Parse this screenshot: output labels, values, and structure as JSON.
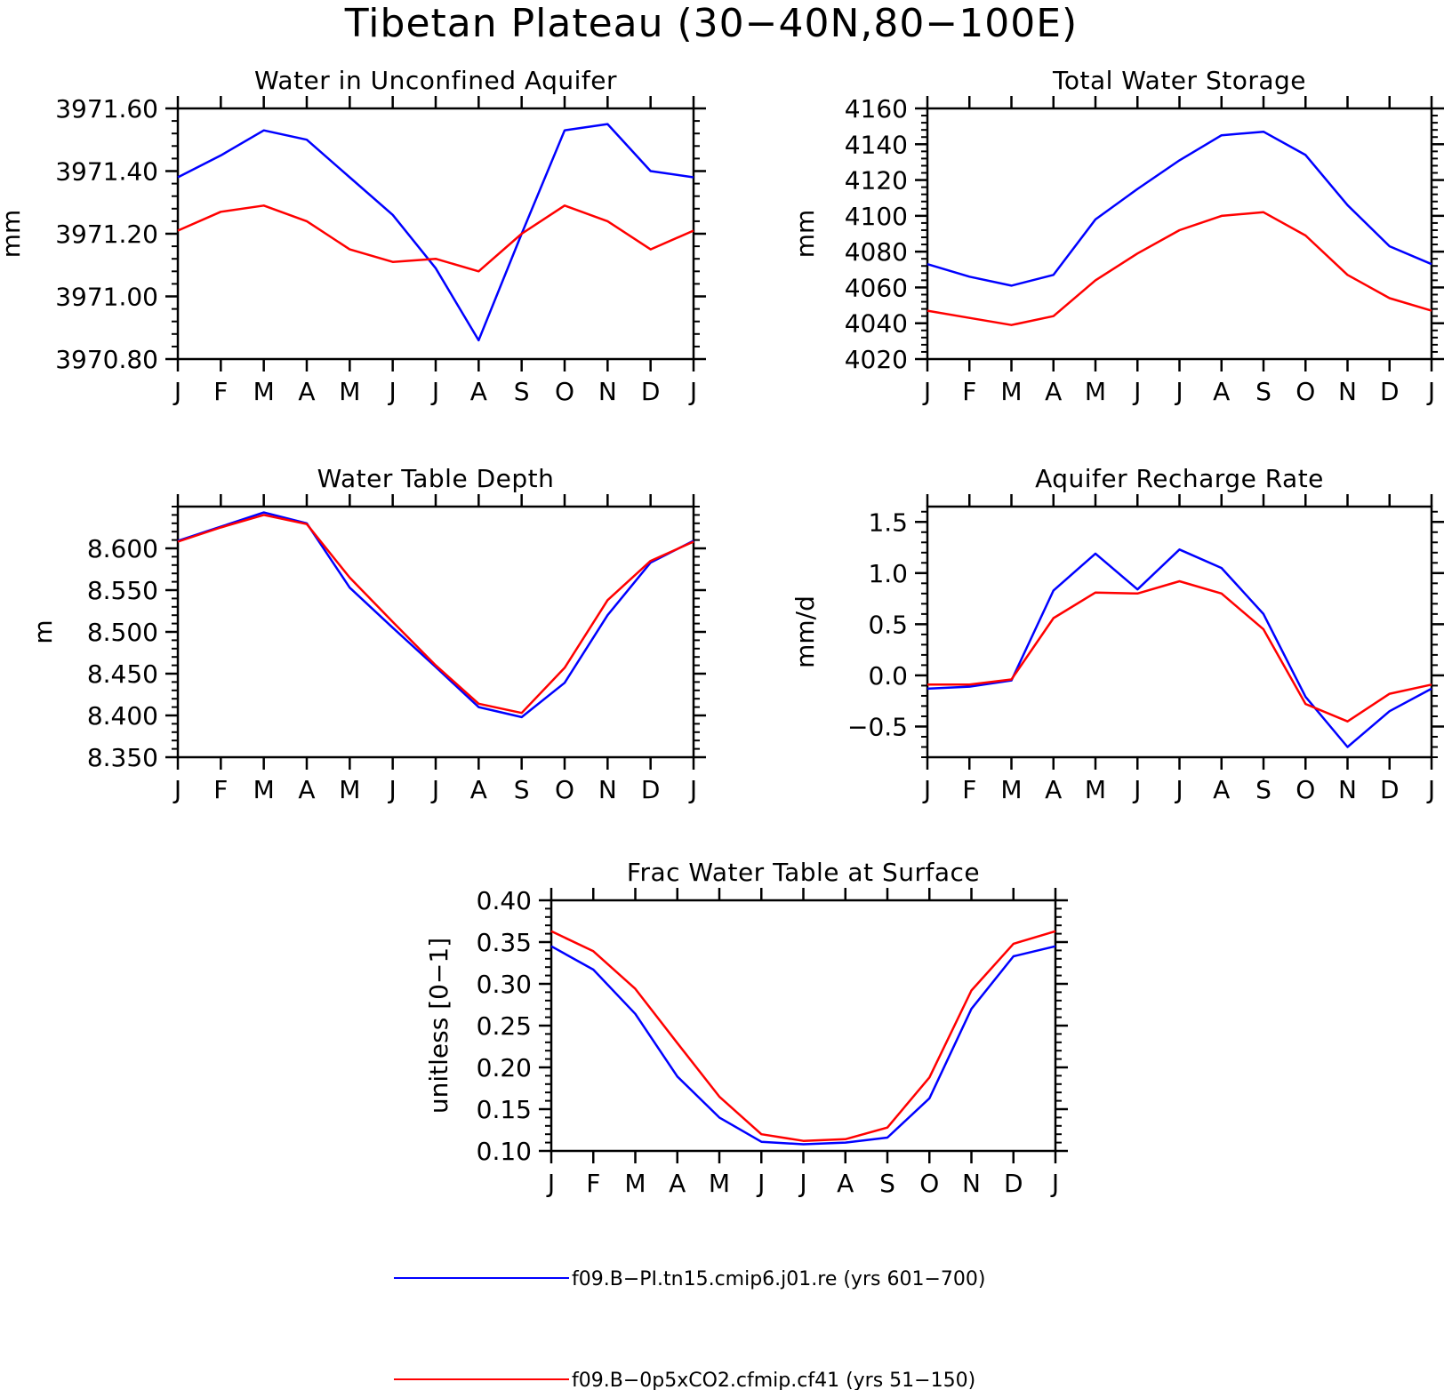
{
  "title": "Tibetan Plateau (30−40N,80−100E)",
  "colors": {
    "blue": "#0000ff",
    "red": "#ff0000",
    "axis": "#000000"
  },
  "legend": [
    {
      "color": "#0000ff",
      "label": "f09.B−PI.tn15.cmip6.j01.re (yrs 601−700)"
    },
    {
      "color": "#ff0000",
      "label": "f09.B−0p5xCO2.cfmip.cf41 (yrs 51−150)"
    }
  ],
  "chart_data": [
    {
      "type": "line",
      "title": "Water in Unconfined Aquifer",
      "ylabel": "mm",
      "x": [
        "J",
        "F",
        "M",
        "A",
        "M",
        "J",
        "J",
        "A",
        "S",
        "O",
        "N",
        "D",
        "J"
      ],
      "ylim": [
        3970.8,
        3971.6
      ],
      "yticks": [
        3970.8,
        3971.0,
        3971.2,
        3971.4,
        3971.6
      ],
      "ytick_labels": [
        "3970.80",
        "3971.00",
        "3971.20",
        "3971.40",
        "3971.60"
      ],
      "series": [
        {
          "color": "#0000ff",
          "values": [
            3971.38,
            3971.45,
            3971.53,
            3971.5,
            3971.38,
            3971.26,
            3971.09,
            3970.86,
            3971.2,
            3971.53,
            3971.55,
            3971.4,
            3971.38
          ]
        },
        {
          "color": "#ff0000",
          "values": [
            3971.21,
            3971.27,
            3971.29,
            3971.24,
            3971.15,
            3971.11,
            3971.12,
            3971.08,
            3971.2,
            3971.29,
            3971.24,
            3971.15,
            3971.21
          ]
        }
      ]
    },
    {
      "type": "line",
      "title": "Total Water Storage",
      "ylabel": "mm",
      "x": [
        "J",
        "F",
        "M",
        "A",
        "M",
        "J",
        "J",
        "A",
        "S",
        "O",
        "N",
        "D",
        "J"
      ],
      "ylim": [
        4020,
        4160
      ],
      "yticks": [
        4020,
        4040,
        4060,
        4080,
        4100,
        4120,
        4140,
        4160
      ],
      "ytick_labels": [
        "4020",
        "4040",
        "4060",
        "4080",
        "4100",
        "4120",
        "4140",
        "4160"
      ],
      "series": [
        {
          "color": "#0000ff",
          "values": [
            4073,
            4066,
            4061,
            4067,
            4098,
            4115,
            4131,
            4145,
            4147,
            4134,
            4106,
            4083,
            4073
          ]
        },
        {
          "color": "#ff0000",
          "values": [
            4047,
            4043,
            4039,
            4044,
            4064,
            4079,
            4092,
            4100,
            4102,
            4089,
            4067,
            4054,
            4047
          ]
        }
      ]
    },
    {
      "type": "line",
      "title": "Water Table Depth",
      "ylabel": "m",
      "x": [
        "J",
        "F",
        "M",
        "A",
        "M",
        "J",
        "J",
        "A",
        "S",
        "O",
        "N",
        "D",
        "J"
      ],
      "ylim": [
        8.35,
        8.65
      ],
      "yticks": [
        8.35,
        8.4,
        8.45,
        8.5,
        8.55,
        8.6
      ],
      "ytick_labels": [
        "8.350",
        "8.400",
        "8.450",
        "8.500",
        "8.550",
        "8.600"
      ],
      "series": [
        {
          "color": "#0000ff",
          "values": [
            8.609,
            8.626,
            8.643,
            8.63,
            8.553,
            8.505,
            8.458,
            8.41,
            8.398,
            8.439,
            8.52,
            8.583,
            8.609
          ]
        },
        {
          "color": "#ff0000",
          "values": [
            8.608,
            8.625,
            8.64,
            8.629,
            8.565,
            8.512,
            8.46,
            8.414,
            8.403,
            8.457,
            8.538,
            8.585,
            8.608
          ]
        }
      ]
    },
    {
      "type": "line",
      "title": "Aquifer Recharge Rate",
      "ylabel": "mm/d",
      "x": [
        "J",
        "F",
        "M",
        "A",
        "M",
        "J",
        "J",
        "A",
        "S",
        "O",
        "N",
        "D",
        "J"
      ],
      "ylim": [
        -0.8,
        1.65
      ],
      "yticks": [
        -0.5,
        0.0,
        0.5,
        1.0,
        1.5
      ],
      "ytick_labels": [
        "−0.5",
        "0.0",
        "0.5",
        "1.0",
        "1.5"
      ],
      "series": [
        {
          "color": "#0000ff",
          "values": [
            -0.13,
            -0.11,
            -0.05,
            0.83,
            1.19,
            0.84,
            1.23,
            1.05,
            0.6,
            -0.21,
            -0.7,
            -0.35,
            -0.13
          ]
        },
        {
          "color": "#ff0000",
          "values": [
            -0.09,
            -0.09,
            -0.04,
            0.56,
            0.81,
            0.8,
            0.92,
            0.8,
            0.45,
            -0.28,
            -0.45,
            -0.18,
            -0.09
          ]
        }
      ]
    },
    {
      "type": "line",
      "title": "Frac Water Table at Surface",
      "ylabel": "unitless [0−1]",
      "x": [
        "J",
        "F",
        "M",
        "A",
        "M",
        "J",
        "J",
        "A",
        "S",
        "O",
        "N",
        "D",
        "J"
      ],
      "ylim": [
        0.1,
        0.4
      ],
      "yticks": [
        0.1,
        0.15,
        0.2,
        0.25,
        0.3,
        0.35,
        0.4
      ],
      "ytick_labels": [
        "0.10",
        "0.15",
        "0.20",
        "0.25",
        "0.30",
        "0.35",
        "0.40"
      ],
      "series": [
        {
          "color": "#0000ff",
          "values": [
            0.345,
            0.317,
            0.264,
            0.189,
            0.14,
            0.111,
            0.108,
            0.11,
            0.116,
            0.163,
            0.27,
            0.333,
            0.345
          ]
        },
        {
          "color": "#ff0000",
          "values": [
            0.363,
            0.339,
            0.294,
            0.229,
            0.165,
            0.12,
            0.112,
            0.114,
            0.128,
            0.188,
            0.292,
            0.348,
            0.363
          ]
        }
      ]
    }
  ]
}
